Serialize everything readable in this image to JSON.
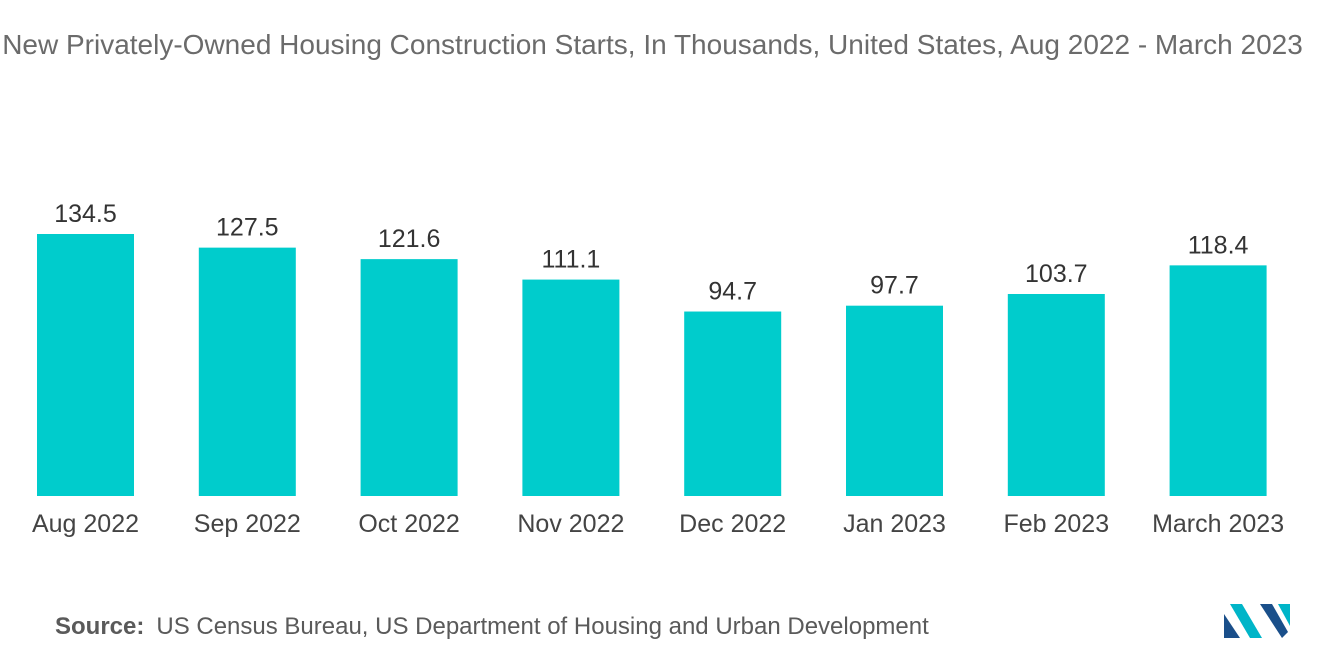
{
  "chart_data": {
    "type": "bar",
    "title": "New Privately-Owned Housing Construction Starts, In Thousands, United States, Aug 2022 - March 2023",
    "categories": [
      "Aug 2022",
      "Sep 2022",
      "Oct 2022",
      "Nov 2022",
      "Dec 2022",
      "Jan 2023",
      "Feb 2023",
      "March 2023"
    ],
    "values": [
      134.5,
      127.5,
      121.6,
      111.1,
      94.7,
      97.7,
      103.7,
      118.4
    ],
    "value_labels": [
      "134.5",
      "127.5",
      "121.6",
      "111.1",
      "94.7",
      "97.7",
      "103.7",
      "118.4"
    ],
    "xlabel": "",
    "ylabel": "",
    "ylim": [
      0,
      134.5
    ],
    "grid": false,
    "legend": "none",
    "colors": {
      "bar": "#00cccc"
    }
  },
  "footer": {
    "source_label": "Source:",
    "source_text": "US Census Bureau, US Department of Housing and Urban Development"
  },
  "logo": {
    "icon": "mordor-intelligence-logo-icon",
    "colors": [
      "#1a4f8a",
      "#00b5c8"
    ]
  }
}
